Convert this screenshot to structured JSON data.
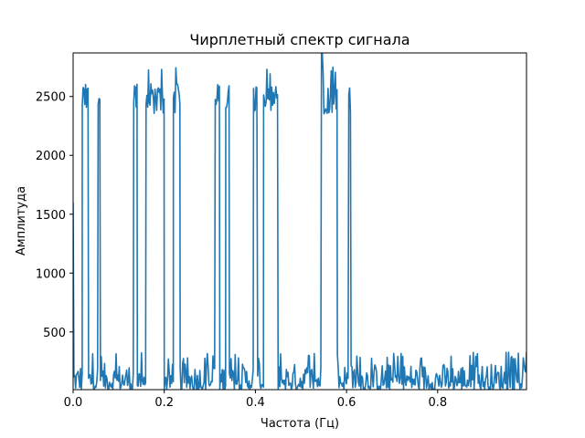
{
  "chart_data": {
    "type": "line",
    "title": "Чирплетный спектр сигнала",
    "xlabel": "Частота (Гц)",
    "ylabel": "Амплитуда",
    "xlim": [
      0,
      0.995
    ],
    "ylim": [
      10,
      2870
    ],
    "xticks": [
      0.0,
      0.2,
      0.4,
      0.6,
      0.8
    ],
    "xtick_labels": [
      "0.0",
      "0.2",
      "0.4",
      "0.6",
      "0.8"
    ],
    "yticks": [
      500,
      1000,
      1500,
      2000,
      2500
    ],
    "ytick_labels": [
      "500",
      "1000",
      "1500",
      "2000",
      "2500"
    ],
    "grid": false,
    "line_color": "#1f77b4",
    "series": [
      {
        "segments": [
          {
            "x": [
              0.0,
              0.02
            ],
            "level": "low",
            "start_spike": 1600
          },
          {
            "x": [
              0.02,
              0.034
            ],
            "level": "high"
          },
          {
            "x": [
              0.034,
              0.055
            ],
            "level": "low"
          },
          {
            "x": [
              0.055,
              0.06
            ],
            "level": "high"
          },
          {
            "x": [
              0.06,
              0.133
            ],
            "level": "low"
          },
          {
            "x": [
              0.133,
              0.141
            ],
            "level": "high"
          },
          {
            "x": [
              0.141,
              0.16
            ],
            "level": "low"
          },
          {
            "x": [
              0.16,
              0.2
            ],
            "level": "high"
          },
          {
            "x": [
              0.2,
              0.22
            ],
            "level": "low"
          },
          {
            "x": [
              0.22,
              0.235
            ],
            "level": "high"
          },
          {
            "x": [
              0.235,
              0.312
            ],
            "level": "low"
          },
          {
            "x": [
              0.312,
              0.322
            ],
            "level": "high"
          },
          {
            "x": [
              0.322,
              0.335
            ],
            "level": "low"
          },
          {
            "x": [
              0.335,
              0.343
            ],
            "level": "high"
          },
          {
            "x": [
              0.343,
              0.396
            ],
            "level": "low"
          },
          {
            "x": [
              0.396,
              0.405
            ],
            "level": "high"
          },
          {
            "x": [
              0.405,
              0.418
            ],
            "level": "low"
          },
          {
            "x": [
              0.418,
              0.45
            ],
            "level": "high"
          },
          {
            "x": [
              0.45,
              0.545
            ],
            "level": "low"
          },
          {
            "x": [
              0.545,
              0.58
            ],
            "level": "high",
            "peak": 2870
          },
          {
            "x": [
              0.58,
              0.605
            ],
            "level": "low"
          },
          {
            "x": [
              0.605,
              0.61
            ],
            "level": "high"
          },
          {
            "x": [
              0.61,
              0.995
            ],
            "level": "low"
          }
        ],
        "high_range": [
          2350,
          2750
        ],
        "low_range": [
          10,
          330
        ]
      }
    ]
  }
}
